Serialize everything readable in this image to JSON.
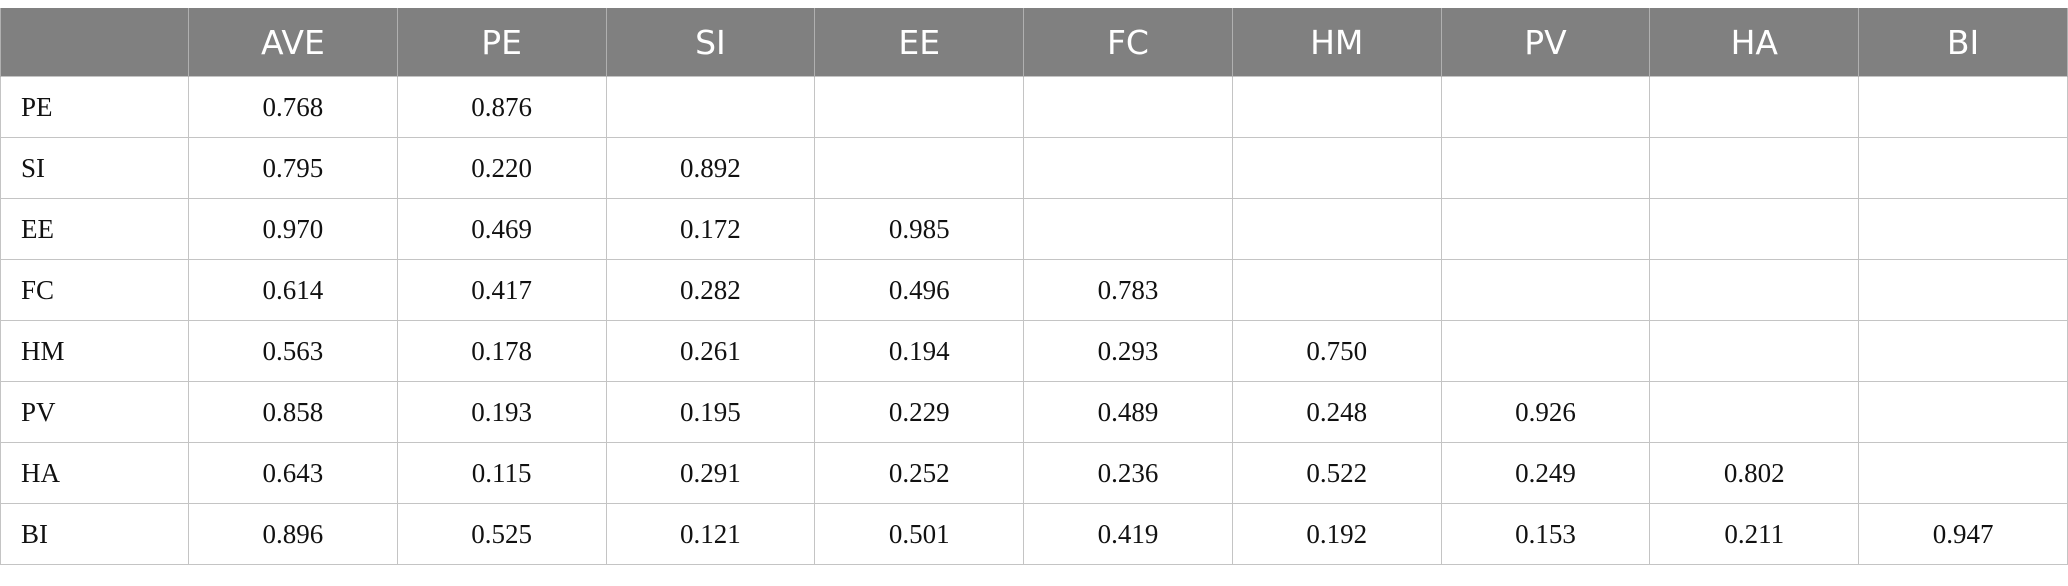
{
  "table": {
    "columns": [
      "",
      "AVE",
      "PE",
      "SI",
      "EE",
      "FC",
      "HM",
      "PV",
      "HA",
      "BI"
    ],
    "rows": [
      [
        "PE",
        "0.768",
        "0.876",
        "",
        "",
        "",
        "",
        "",
        "",
        ""
      ],
      [
        "SI",
        "0.795",
        "0.220",
        "0.892",
        "",
        "",
        "",
        "",
        "",
        ""
      ],
      [
        "EE",
        "0.970",
        "0.469",
        "0.172",
        "0.985",
        "",
        "",
        "",
        "",
        ""
      ],
      [
        "FC",
        "0.614",
        "0.417",
        "0.282",
        "0.496",
        "0.783",
        "",
        "",
        "",
        ""
      ],
      [
        "HM",
        "0.563",
        "0.178",
        "0.261",
        "0.194",
        "0.293",
        "0.750",
        "",
        "",
        ""
      ],
      [
        "PV",
        "0.858",
        "0.193",
        "0.195",
        "0.229",
        "0.489",
        "0.248",
        "0.926",
        "",
        ""
      ],
      [
        "HA",
        "0.643",
        "0.115",
        "0.291",
        "0.252",
        "0.236",
        "0.522",
        "0.249",
        "0.802",
        ""
      ],
      [
        "BI",
        "0.896",
        "0.525",
        "0.121",
        "0.501",
        "0.419",
        "0.192",
        "0.153",
        "0.211",
        "0.947"
      ]
    ]
  },
  "colors": {
    "header_bg": "#808080",
    "header_text": "#ffffff",
    "grid": "#c4c4c4"
  }
}
